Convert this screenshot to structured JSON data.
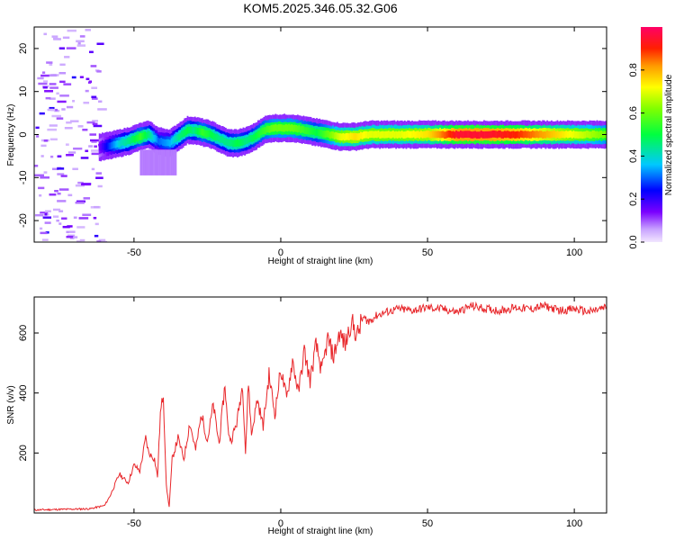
{
  "title": "KOM5.2025.346.05.32.G06",
  "chart_data": [
    {
      "type": "heatmap",
      "xlabel": "Height of straight line (km)",
      "ylabel": "Frequency (Hz)",
      "xlim": [
        -84,
        111
      ],
      "ylim": [
        -25,
        25
      ],
      "xticks": [
        -50,
        0,
        50,
        100
      ],
      "xtick_labels": [
        "-50",
        "0",
        "50",
        "100"
      ],
      "yticks": [
        -20,
        -10,
        0,
        10,
        20
      ],
      "ytick_labels": [
        "-20",
        "-10",
        "0",
        "10",
        "20"
      ],
      "ridge": {
        "x": [
          -62,
          -58,
          -55,
          -52,
          -48,
          -45,
          -42,
          -38,
          -35,
          -32,
          -30,
          -27,
          -24,
          -21,
          -18,
          -15,
          -12,
          -9,
          -6,
          -3,
          0,
          4,
          8,
          12,
          16,
          20,
          25,
          30,
          40,
          50,
          60,
          70,
          80,
          90,
          100,
          111
        ],
        "frequency_hz": [
          -3,
          -2.5,
          -2,
          -1.5,
          -0.5,
          0,
          -1.5,
          -2,
          -0.5,
          1,
          1,
          0.5,
          0,
          -1,
          -2,
          -2,
          -1.5,
          -0.5,
          1,
          1.5,
          1.5,
          1.5,
          1,
          0.5,
          0,
          -0.5,
          -0.5,
          0,
          0,
          0,
          0,
          0,
          0,
          0,
          0,
          0
        ],
        "amplitude": [
          0.15,
          0.3,
          0.4,
          0.45,
          0.55,
          0.45,
          0.3,
          0.35,
          0.45,
          0.5,
          0.45,
          0.55,
          0.5,
          0.45,
          0.45,
          0.5,
          0.45,
          0.5,
          0.55,
          0.6,
          0.6,
          0.6,
          0.55,
          0.5,
          0.6,
          0.7,
          0.75,
          0.7,
          0.7,
          0.75,
          0.95,
          0.95,
          0.9,
          0.8,
          0.7,
          0.6
        ]
      },
      "noise_region_x": [
        -84,
        -62
      ],
      "colorbar": {
        "label": "Normalized spectral amplitude",
        "range": [
          0,
          1
        ],
        "ticks": [
          0.0,
          0.2,
          0.4,
          0.6,
          0.8
        ],
        "tick_labels": [
          "0.0",
          "0.2",
          "0.4",
          "0.6",
          "0.8"
        ]
      }
    },
    {
      "type": "line",
      "xlabel": "Height of straight line (km)",
      "ylabel": "SNR (v/v)",
      "xlim": [
        -84,
        111
      ],
      "ylim": [
        0,
        720
      ],
      "xticks": [
        -50,
        0,
        50,
        100
      ],
      "xtick_labels": [
        "-50",
        "0",
        "50",
        "100"
      ],
      "yticks": [
        200,
        400,
        600
      ],
      "ytick_labels": [
        "200",
        "400",
        "600"
      ],
      "series": [
        {
          "color": "#e8262a",
          "x": [
            -84,
            -75,
            -65,
            -60,
            -58,
            -55,
            -52,
            -50,
            -48,
            -46,
            -45,
            -43,
            -42,
            -41,
            -40,
            -39,
            -38,
            -37,
            -35,
            -33,
            -31,
            -29,
            -27,
            -25,
            -23,
            -21,
            -19,
            -18,
            -17,
            -15,
            -13,
            -12,
            -11,
            -10,
            -8,
            -6,
            -4,
            -2,
            0,
            2,
            4,
            6,
            8,
            10,
            12,
            14,
            16,
            18,
            20,
            22,
            24,
            26,
            28,
            30,
            33,
            36,
            40,
            45,
            50,
            55,
            60,
            65,
            70,
            75,
            80,
            85,
            90,
            95,
            100,
            105,
            111
          ],
          "values": [
            10,
            12,
            14,
            25,
            60,
            130,
            100,
            160,
            140,
            250,
            200,
            180,
            120,
            330,
            400,
            90,
            20,
            180,
            250,
            180,
            300,
            210,
            330,
            240,
            360,
            230,
            430,
            280,
            240,
            300,
            430,
            200,
            440,
            260,
            380,
            290,
            460,
            330,
            480,
            380,
            510,
            400,
            540,
            440,
            560,
            470,
            580,
            520,
            600,
            560,
            640,
            590,
            650,
            640,
            660,
            670,
            680,
            675,
            685,
            680,
            670,
            690,
            680,
            675,
            685,
            680,
            690,
            675,
            680,
            670,
            685
          ]
        }
      ]
    }
  ]
}
